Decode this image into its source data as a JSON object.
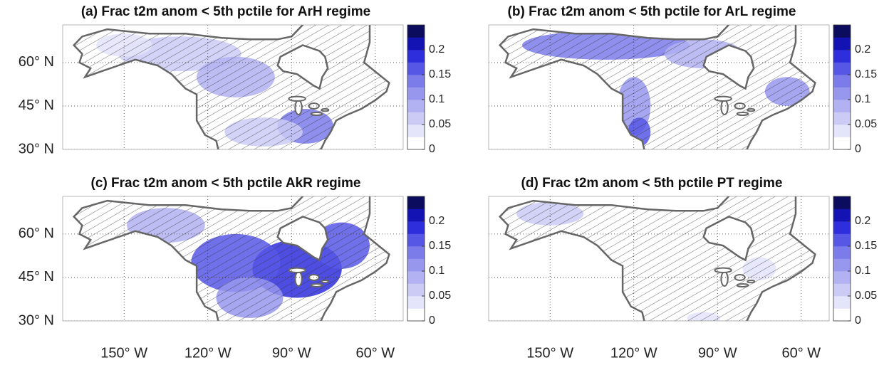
{
  "panels": [
    {
      "title": "(a) Frac t2m anom < 5th pctile for ArH regime"
    },
    {
      "title": "(b) Frac t2m anom < 5th pctile for ArL regime"
    },
    {
      "title": "(c) Frac t2m anom < 5th pctile AkR regime"
    },
    {
      "title": "(d) Frac t2m anom < 5th pctile PT regime"
    }
  ],
  "lat_lim": [
    30,
    73
  ],
  "lon_lim": [
    -172,
    -50
  ],
  "lat_ticks": [
    {
      "value": 30,
      "label": "30° N"
    },
    {
      "value": 45,
      "label": "45° N"
    },
    {
      "value": 60,
      "label": "60° N"
    }
  ],
  "lon_ticks": [
    {
      "value": -150,
      "label": "150° W"
    },
    {
      "value": -120,
      "label": "120° W"
    },
    {
      "value": -90,
      "label": "90° W"
    },
    {
      "value": -60,
      "label": "60° W"
    }
  ],
  "colorbar": {
    "lim": [
      0,
      0.25
    ],
    "ticks": [
      0,
      0.05,
      0.1,
      0.15,
      0.2
    ],
    "colors": [
      "#ffffff",
      "#e4e4fb",
      "#cbcbf6",
      "#b2b2f2",
      "#9797ee",
      "#7b7bea",
      "#5757e6",
      "#2e2edc",
      "#1313b4",
      "#0c0c5e"
    ]
  }
}
